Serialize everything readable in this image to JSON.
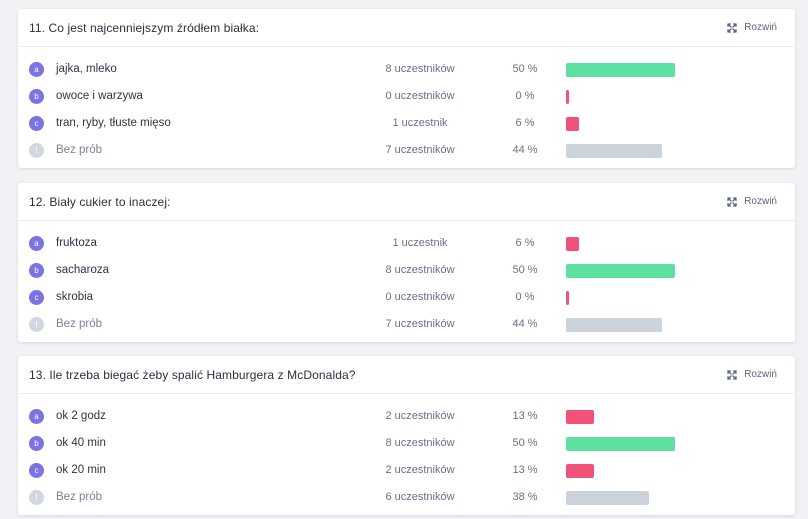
{
  "expand_label": "Rozwiń",
  "colors": {
    "badge": "#7b72e3",
    "badge_none": "#d2d6de",
    "bar_high": "#5ee0a0",
    "bar_low": "#f0527a",
    "bar_none": "#ccd3db"
  },
  "questions": [
    {
      "title": "11. Co jest najcenniejszym źródłem białka:",
      "rows": [
        {
          "letter": "a",
          "answer": "jajka, mleko",
          "count": "8 uczestników",
          "pct_label": "50 %",
          "pct": 50,
          "type": "high"
        },
        {
          "letter": "b",
          "answer": "owoce i warzywa",
          "count": "0 uczestników",
          "pct_label": "0 %",
          "pct": 0,
          "type": "low"
        },
        {
          "letter": "c",
          "answer": "tran, ryby, tłuste mięso",
          "count": "1 uczestnik",
          "pct_label": "6 %",
          "pct": 6,
          "type": "low"
        },
        {
          "letter": "!",
          "answer": "Bez prób",
          "count": "7 uczestników",
          "pct_label": "44 %",
          "pct": 44,
          "type": "none"
        }
      ]
    },
    {
      "title": "12. Biały cukier to inaczej:",
      "rows": [
        {
          "letter": "a",
          "answer": "fruktoza",
          "count": "1 uczestnik",
          "pct_label": "6 %",
          "pct": 6,
          "type": "low"
        },
        {
          "letter": "b",
          "answer": "sacharoza",
          "count": "8 uczestników",
          "pct_label": "50 %",
          "pct": 50,
          "type": "high"
        },
        {
          "letter": "c",
          "answer": "skrobia",
          "count": "0 uczestników",
          "pct_label": "0 %",
          "pct": 0,
          "type": "low"
        },
        {
          "letter": "!",
          "answer": "Bez prób",
          "count": "7 uczestników",
          "pct_label": "44 %",
          "pct": 44,
          "type": "none"
        }
      ]
    },
    {
      "title": "13. Ile trzeba biegać żeby spalić Hamburgera z McDonalda?",
      "rows": [
        {
          "letter": "a",
          "answer": "ok 2 godz",
          "count": "2 uczestników",
          "pct_label": "13 %",
          "pct": 13,
          "type": "low"
        },
        {
          "letter": "b",
          "answer": "ok 40 min",
          "count": "8 uczestników",
          "pct_label": "50 %",
          "pct": 50,
          "type": "high"
        },
        {
          "letter": "c",
          "answer": "ok 20 min",
          "count": "2 uczestników",
          "pct_label": "13 %",
          "pct": 13,
          "type": "low"
        },
        {
          "letter": "!",
          "answer": "Bez prób",
          "count": "6 uczestników",
          "pct_label": "38 %",
          "pct": 38,
          "type": "none"
        }
      ]
    }
  ]
}
